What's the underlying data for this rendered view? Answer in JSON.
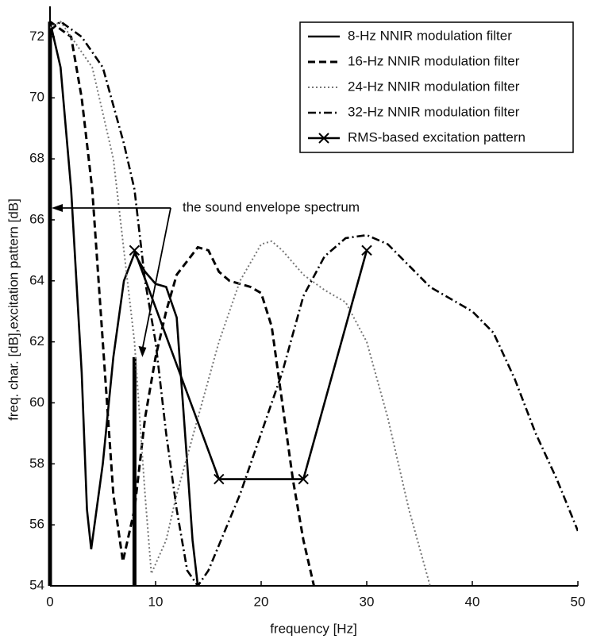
{
  "chart_data": {
    "type": "line",
    "xlabel": "frequency [Hz]",
    "ylabel": "freq. char. [dB],excitation pattern [dB]",
    "xlim": [
      0,
      50
    ],
    "ylim": [
      54,
      73
    ],
    "xticks": [
      0,
      10,
      20,
      30,
      40,
      50
    ],
    "yticks": [
      54,
      56,
      58,
      60,
      62,
      64,
      66,
      68,
      70,
      72
    ],
    "legend": "upper right",
    "series": [
      {
        "name": "8-Hz   NNIR modulation filter",
        "color": "#000000",
        "style": "solid",
        "x": [
          0,
          1,
          2,
          3,
          3.5,
          3.9,
          5,
          6,
          7,
          8,
          9,
          10,
          11,
          12,
          13,
          13.5,
          14
        ],
        "values": [
          72.5,
          71,
          67,
          61,
          56.5,
          55.2,
          58,
          61.5,
          64,
          64.9,
          64.3,
          63.9,
          63.8,
          62.8,
          58,
          55.5,
          54
        ]
      },
      {
        "name": "16-Hz NNIR modulation filter",
        "color": "#000000",
        "style": "dashed",
        "x": [
          0,
          2,
          3,
          4,
          5,
          6,
          6.9,
          8,
          9,
          10,
          11,
          12,
          14,
          15,
          16,
          17,
          19,
          20,
          21,
          22,
          23,
          24,
          25
        ],
        "values": [
          72.5,
          72,
          70,
          67,
          62,
          57,
          54.8,
          56.5,
          59.5,
          61.5,
          63,
          64.2,
          65.1,
          65,
          64.3,
          64,
          63.8,
          63.6,
          62.5,
          60,
          57.5,
          55.5,
          54
        ]
      },
      {
        "name": "24-Hz NNIR modulation filter",
        "color": "#777777",
        "style": "dotted",
        "x": [
          0,
          1,
          4,
          6,
          8,
          9,
          9.6,
          11,
          12,
          14,
          16,
          18,
          20,
          21,
          22,
          24,
          26,
          28,
          30,
          32,
          34,
          36
        ],
        "values": [
          72.3,
          72.5,
          71,
          68,
          62,
          57,
          54.4,
          55.5,
          57,
          59.5,
          62,
          64,
          65.2,
          65.3,
          65,
          64.2,
          63.7,
          63.3,
          62,
          59.5,
          56.5,
          54
        ]
      },
      {
        "name": "32-Hz NNIR modulation filter",
        "color": "#000000",
        "style": "dashdot",
        "x": [
          0,
          1,
          3,
          5,
          7,
          8,
          9,
          10,
          11,
          12,
          13,
          14,
          15,
          18,
          20,
          22,
          24,
          26,
          28,
          30,
          32,
          34,
          36,
          38,
          40,
          42,
          44,
          46,
          48,
          50
        ],
        "values": [
          72.2,
          72.5,
          72,
          71,
          68.5,
          67,
          64,
          62,
          59,
          56.5,
          54.5,
          54,
          54.5,
          57,
          59,
          61,
          63.5,
          64.8,
          65.4,
          65.5,
          65.2,
          64.5,
          63.8,
          63.4,
          63,
          62.3,
          60.8,
          59,
          57.5,
          55.8
        ]
      },
      {
        "name": "RMS-based excitation pattern",
        "color": "#000000",
        "style": "solid",
        "marker": "x",
        "x": [
          8,
          16,
          24,
          30
        ],
        "values": [
          65,
          57.5,
          57.5,
          65
        ]
      }
    ],
    "envelope_spectrum": {
      "x": [
        0,
        8
      ],
      "values": [
        72.5,
        61.5
      ]
    },
    "annotation": "the sound envelope spectrum"
  }
}
